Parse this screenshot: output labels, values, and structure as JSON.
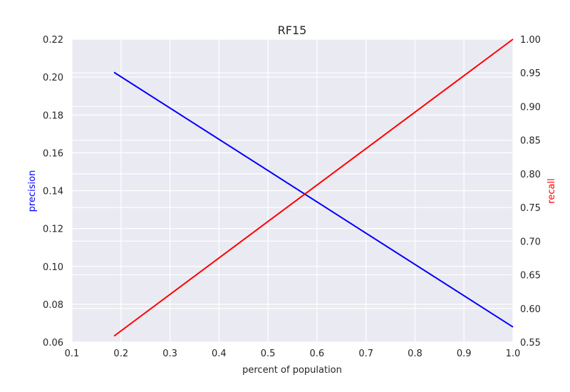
{
  "chart_data": {
    "type": "line",
    "title": "RF15",
    "xlabel": "percent of population",
    "ylabel_left": "precision",
    "ylabel_right": "recall",
    "xlim": [
      0.1,
      1.0
    ],
    "ylim_left": [
      0.06,
      0.22
    ],
    "ylim_right": [
      0.55,
      1.0
    ],
    "x_ticks": [
      "0.1",
      "0.2",
      "0.3",
      "0.4",
      "0.5",
      "0.6",
      "0.7",
      "0.8",
      "0.9",
      "1.0"
    ],
    "y_left_ticks": [
      "0.06",
      "0.08",
      "0.10",
      "0.12",
      "0.14",
      "0.16",
      "0.18",
      "0.20",
      "0.22"
    ],
    "y_right_ticks": [
      "0.55",
      "0.60",
      "0.65",
      "0.70",
      "0.75",
      "0.80",
      "0.85",
      "0.90",
      "0.95",
      "1.00"
    ],
    "grid": true,
    "series": [
      {
        "name": "precision",
        "axis": "left",
        "color": "#0000ff",
        "x": [
          0.186,
          1.0
        ],
        "y": [
          0.2025,
          0.068
        ]
      },
      {
        "name": "recall",
        "axis": "right",
        "color": "#ff0000",
        "x": [
          0.186,
          1.0
        ],
        "y": [
          0.559,
          1.0
        ]
      }
    ]
  },
  "colors": {
    "plot_bg": "#eaeaf2",
    "grid": "#ffffff",
    "text": "#262626",
    "precision": "#0000ff",
    "recall": "#ff0000"
  }
}
